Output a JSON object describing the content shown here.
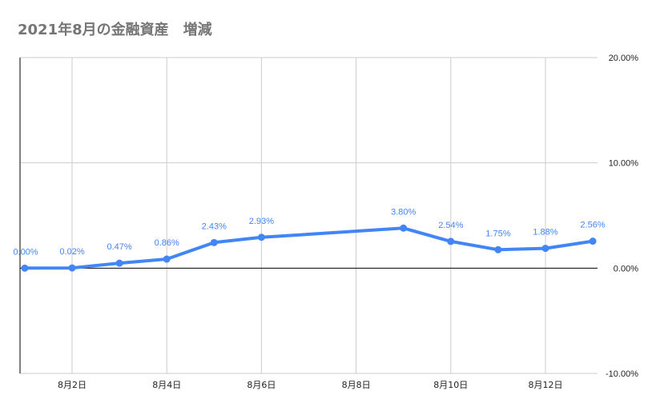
{
  "chart_data": {
    "type": "line",
    "title": "2021年8月の金融資産　増減",
    "x": [
      "8月1日",
      "8月2日",
      "8月3日",
      "8月4日",
      "8月5日",
      "8月6日",
      "8月9日",
      "8月10日",
      "8月11日",
      "8月12日",
      "8月13日"
    ],
    "x_day": [
      1,
      2,
      3,
      4,
      5,
      6,
      9,
      10,
      11,
      12,
      13
    ],
    "values": [
      0.0,
      0.02,
      0.47,
      0.86,
      2.43,
      2.93,
      3.8,
      2.54,
      1.75,
      1.88,
      2.56
    ],
    "data_labels": [
      "0.00%",
      "0.02%",
      "0.47%",
      "0.86%",
      "2.43%",
      "2.93%",
      "3.80%",
      "2.54%",
      "1.75%",
      "1.88%",
      "2.56%"
    ],
    "xlim": [
      0.9,
      13.1
    ],
    "ylim": [
      -10,
      20
    ],
    "x_ticks": [
      {
        "day": 2,
        "label": "8月2日"
      },
      {
        "day": 4,
        "label": "8月4日"
      },
      {
        "day": 6,
        "label": "8月6日"
      },
      {
        "day": 8,
        "label": "8月8日"
      },
      {
        "day": 10,
        "label": "8月10日"
      },
      {
        "day": 12,
        "label": "8月12日"
      }
    ],
    "y_ticks": [
      {
        "value": 20,
        "label": "20.00%"
      },
      {
        "value": 10,
        "label": "10.00%"
      },
      {
        "value": 0,
        "label": "0.00%"
      },
      {
        "value": -10,
        "label": "-10.00%"
      }
    ],
    "y_axis_side": "right",
    "grid": true,
    "line_color": "#4285f4",
    "grid_color": "#cccccc",
    "axis_color": "#000000"
  }
}
